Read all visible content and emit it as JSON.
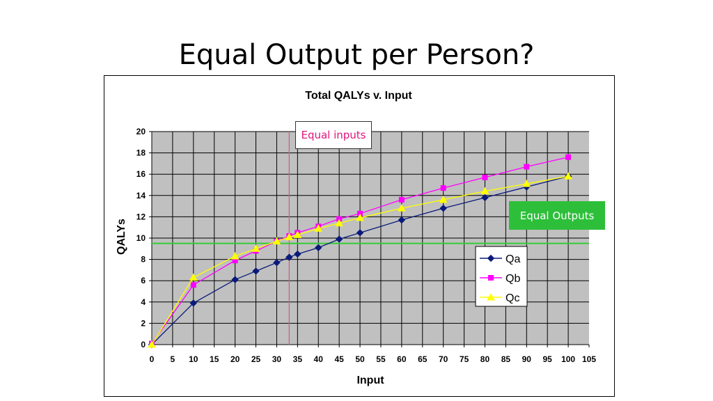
{
  "slide": {
    "title": "Equal Output per Person?"
  },
  "callouts": {
    "equal_inputs": "Equal inputs",
    "equal_outputs": "Equal Outputs"
  },
  "colors": {
    "Qa": "#0a1a7a",
    "Qb": "#ff00ff",
    "Qc": "#ffff00",
    "plot_bg": "#c0c0c0",
    "equal_input_line": "#d06080",
    "equal_output_line": "#33cc33",
    "equal_outputs_box": "#2dbf3a"
  },
  "chart_data": {
    "type": "line",
    "title": "Total QALYs v. Input",
    "xlabel": "Input",
    "ylabel": "QALYs",
    "xlim": [
      0,
      105
    ],
    "ylim": [
      0,
      20
    ],
    "x_ticks": [
      0,
      5,
      10,
      15,
      20,
      25,
      30,
      35,
      40,
      45,
      50,
      55,
      60,
      65,
      70,
      75,
      80,
      85,
      90,
      95,
      100,
      105
    ],
    "y_ticks": [
      0,
      2,
      4,
      6,
      8,
      10,
      12,
      14,
      16,
      18,
      20
    ],
    "grid": true,
    "legend_position": "right",
    "reference_lines": {
      "equal_input_x": 33,
      "equal_output_y": 9.5
    },
    "series": [
      {
        "name": "Qa",
        "marker": "diamond",
        "x": [
          0,
          10,
          20,
          25,
          30,
          33,
          35,
          40,
          45,
          50,
          60,
          70,
          80,
          90,
          100
        ],
        "y": [
          0,
          3.9,
          6.1,
          6.9,
          7.7,
          8.2,
          8.5,
          9.1,
          9.9,
          10.5,
          11.7,
          12.8,
          13.8,
          14.8,
          15.8
        ]
      },
      {
        "name": "Qb",
        "marker": "square",
        "x": [
          0,
          10,
          20,
          25,
          30,
          33,
          35,
          40,
          45,
          50,
          60,
          70,
          80,
          90,
          100
        ],
        "y": [
          0.1,
          5.6,
          7.9,
          8.8,
          9.7,
          10.2,
          10.5,
          11.1,
          11.8,
          12.3,
          13.6,
          14.7,
          15.7,
          16.7,
          17.6
        ]
      },
      {
        "name": "Qc",
        "marker": "triangle",
        "x": [
          0,
          10,
          20,
          25,
          30,
          33,
          35,
          40,
          45,
          50,
          60,
          70,
          80,
          90,
          100
        ],
        "y": [
          0,
          6.3,
          8.3,
          9.0,
          9.7,
          10.1,
          10.3,
          10.9,
          11.4,
          11.9,
          12.8,
          13.6,
          14.4,
          15.1,
          15.8
        ]
      }
    ]
  }
}
